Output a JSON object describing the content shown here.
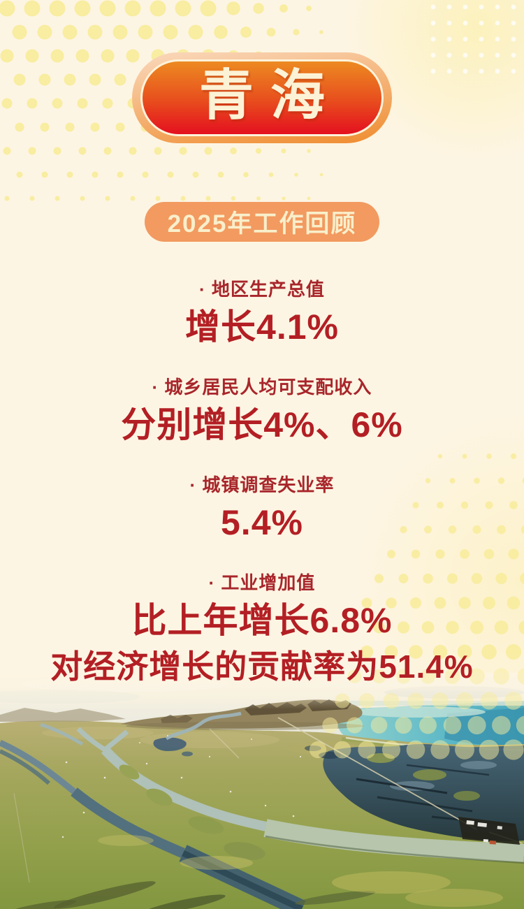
{
  "header": {
    "title": "青海",
    "section": "2025年工作回顾"
  },
  "stats": [
    {
      "label": "· 地区生产总值",
      "lines": [
        "增长4.1%"
      ]
    },
    {
      "label": "· 城乡居民人均可支配收入",
      "lines": [
        "分别增长4%、6%"
      ]
    },
    {
      "label": "· 城镇调查失业率",
      "lines": [
        "5.4%"
      ]
    },
    {
      "label": "· 工业增加值",
      "lines": [
        "比上年增长6.8%",
        "对经济增长的贡献率为51.4%"
      ]
    }
  ],
  "colors": {
    "background-cream": "#fdf5e3",
    "dot-yellow": "#f8ec9c",
    "accent-red": "#b31f24",
    "label-red": "#a8262b",
    "badge-top-orange": "#ec8a21",
    "badge-mid-red-orange": "#e8501e",
    "badge-bottom-red": "#e4101f",
    "badge-outer-light": "#fad9bd",
    "badge-outer-orange": "#ef8c2f",
    "badge-border-cream": "#fdf3da",
    "badge-text-cream": "#fcf2d6",
    "subtitle-orange": "#f29a60",
    "subtitle-text-cream": "#f9efcb",
    "lake-teal": "#55b4c2"
  }
}
